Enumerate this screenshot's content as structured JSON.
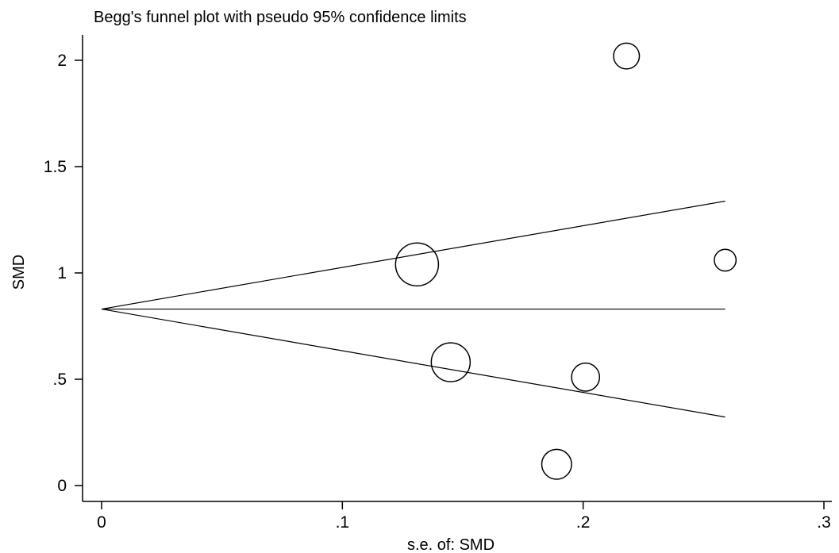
{
  "chart_data": {
    "type": "scatter",
    "title": "Begg's funnel plot with pseudo 95% confidence limits",
    "xlabel": "s.e. of: SMD",
    "ylabel": "SMD",
    "xlim": [
      0,
      0.3
    ],
    "ylim": [
      0,
      2
    ],
    "x_ticks": [
      {
        "value": 0,
        "label": "0"
      },
      {
        "value": 0.1,
        "label": ".1"
      },
      {
        "value": 0.2,
        "label": ".2"
      },
      {
        "value": 0.3,
        "label": ".3"
      }
    ],
    "y_ticks": [
      {
        "value": 0,
        "label": "0"
      },
      {
        "value": 0.5,
        "label": ".5"
      },
      {
        "value": 1,
        "label": "1"
      },
      {
        "value": 1.5,
        "label": "1.5"
      },
      {
        "value": 2,
        "label": "2"
      }
    ],
    "grid": false,
    "pooled_estimate": 0.83,
    "funnel_max_se": 0.259,
    "points": [
      {
        "se": 0.218,
        "smd": 2.02,
        "weight": 21.0
      },
      {
        "se": 0.131,
        "smd": 1.04,
        "weight": 58.0
      },
      {
        "se": 0.259,
        "smd": 1.06,
        "weight": 14.9
      },
      {
        "se": 0.145,
        "smd": 0.58,
        "weight": 47.6
      },
      {
        "se": 0.201,
        "smd": 0.51,
        "weight": 24.7
      },
      {
        "se": 0.189,
        "smd": 0.1,
        "weight": 28.0
      }
    ],
    "colors": {
      "stroke": "#000000",
      "background": "#ffffff"
    }
  }
}
